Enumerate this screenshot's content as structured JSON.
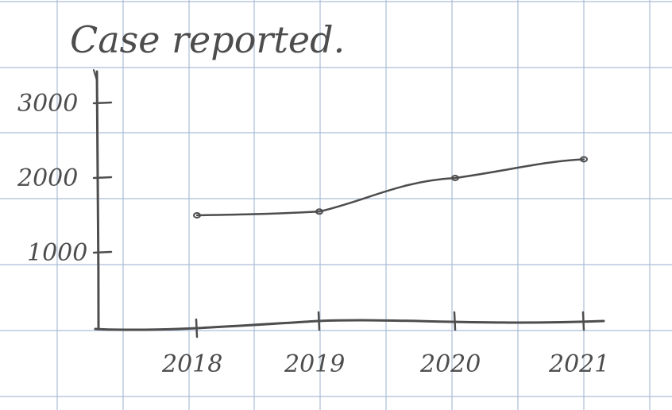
{
  "chart_data": {
    "type": "line",
    "title": "Case reported.",
    "xlabel": "",
    "ylabel": "",
    "x": [
      "2018",
      "2019",
      "2020",
      "2021"
    ],
    "values": [
      1500,
      1550,
      2000,
      2250
    ],
    "yticks": [
      "1000",
      "2000",
      "3000"
    ],
    "xticks": [
      "2018",
      "2019",
      "2020",
      "2021"
    ],
    "ylim": [
      0,
      3300
    ],
    "grid": true,
    "style": "hand-drawn on grid paper"
  },
  "colors": {
    "ink": "#4d4d4d",
    "grid": "#aabdd6",
    "paper": "#ffffff"
  }
}
